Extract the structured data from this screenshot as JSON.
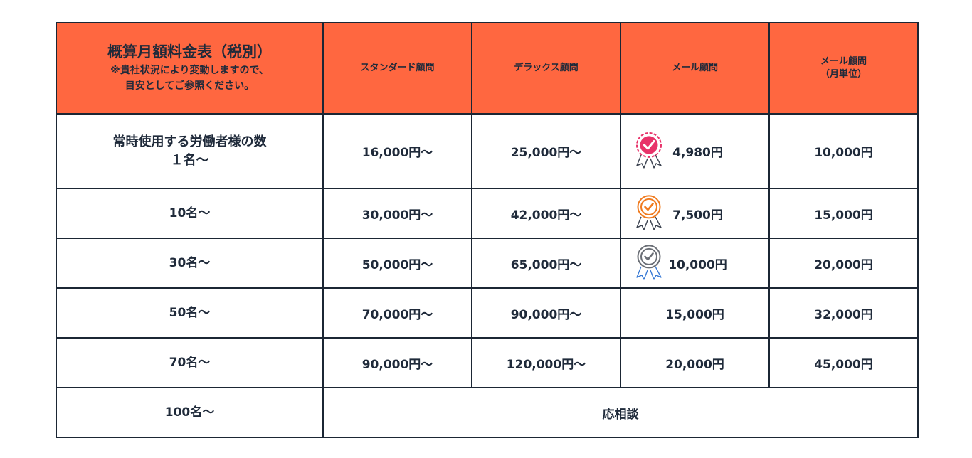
{
  "header": {
    "title": "概算月額料金表（税別）",
    "note": "※貴社状況により変動しますので、\n目安としてご参照ください。",
    "columns": [
      "スタンダード顧問",
      "デラックス顧問",
      "メール顧問",
      "メール顧問\n（月単位）"
    ]
  },
  "rows": [
    {
      "label": "常時使用する労働者様の数\n１名〜",
      "standard": "16,000円〜",
      "deluxe": "25,000円〜",
      "mail": "4,980円",
      "mail_monthly": "10,000円",
      "badge": "pink"
    },
    {
      "label": "10名〜",
      "standard": "30,000円〜",
      "deluxe": "42,000円〜",
      "mail": "7,500円",
      "mail_monthly": "15,000円",
      "badge": "orange"
    },
    {
      "label": "30名〜",
      "standard": "50,000円〜",
      "deluxe": "65,000円〜",
      "mail": "10,000円",
      "mail_monthly": "20,000円",
      "badge": "gray"
    },
    {
      "label": "50名〜",
      "standard": "70,000円〜",
      "deluxe": "90,000円〜",
      "mail": "15,000円",
      "mail_monthly": "32,000円"
    },
    {
      "label": "70名〜",
      "standard": "90,000円〜",
      "deluxe": "120,000円〜",
      "mail": "20,000円",
      "mail_monthly": "45,000円"
    }
  ],
  "last_row": {
    "label": "100名〜",
    "merged": "応相談"
  },
  "colors": {
    "header_bg": "#ff6740",
    "border": "#1b2634",
    "text": "#1f2a3a",
    "badge_pink": "#e8336a",
    "badge_orange": "#f07b1f",
    "badge_gray": "#6b6f76"
  },
  "icons": {
    "pink": "award-badge-pink-icon",
    "orange": "award-badge-orange-icon",
    "gray": "award-badge-gray-icon"
  }
}
